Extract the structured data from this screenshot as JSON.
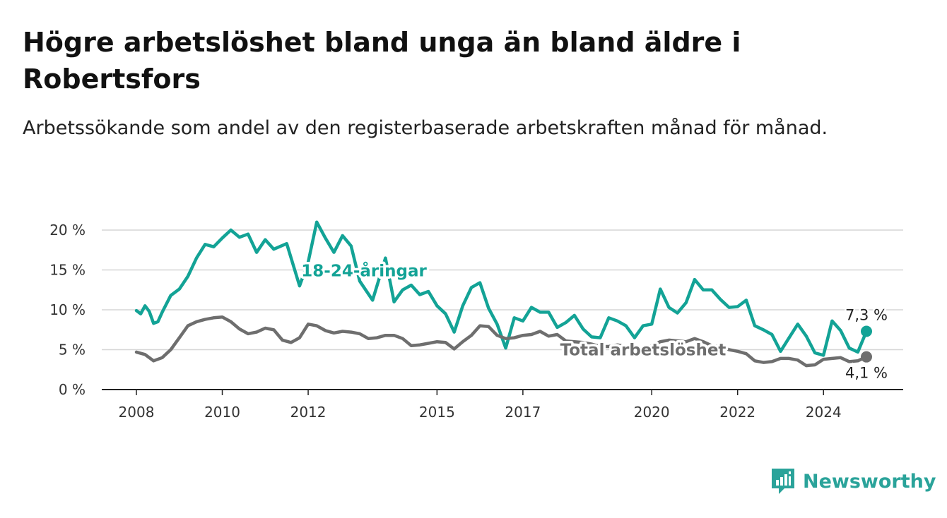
{
  "header": {
    "title": "Högre arbetslöshet bland unga än bland äldre i Robertsfors",
    "subtitle": "Arbetssökande som andel av den registerbaserade arbetskraften månad för månad."
  },
  "brand": {
    "name": "Newsworthy",
    "icon": "bar-chart-logo-icon",
    "color": "#2aa39a"
  },
  "chart_data": {
    "type": "line",
    "xlim": [
      2008,
      2025.6
    ],
    "ylim": [
      0,
      20
    ],
    "y_ticks": [
      0,
      5,
      10,
      15,
      20
    ],
    "y_tick_labels": [
      "0 %",
      "5 %",
      "10 %",
      "15 %",
      "20 %"
    ],
    "x_ticks": [
      2008,
      2010,
      2012,
      2015,
      2017,
      2020,
      2022,
      2024
    ],
    "x_tick_labels": [
      "2008",
      "2010",
      "2012",
      "2015",
      "2017",
      "2020",
      "2022",
      "2024"
    ],
    "grid": true,
    "series": [
      {
        "name": "18-24-åringar",
        "color": "#13a396",
        "end_label": "7,3 %",
        "x": [
          2008.0,
          2008.1,
          2008.2,
          2008.3,
          2008.4,
          2008.5,
          2008.6,
          2008.8,
          2009.0,
          2009.2,
          2009.4,
          2009.6,
          2009.8,
          2010.0,
          2010.2,
          2010.4,
          2010.6,
          2010.8,
          2011.0,
          2011.2,
          2011.5,
          2011.8,
          2012.0,
          2012.2,
          2012.4,
          2012.6,
          2012.8,
          2013.0,
          2013.2,
          2013.5,
          2013.8,
          2014.0,
          2014.2,
          2014.4,
          2014.6,
          2014.8,
          2015.0,
          2015.2,
          2015.4,
          2015.6,
          2015.8,
          2016.0,
          2016.2,
          2016.4,
          2016.6,
          2016.8,
          2017.0,
          2017.2,
          2017.4,
          2017.6,
          2017.8,
          2018.0,
          2018.2,
          2018.4,
          2018.6,
          2018.8,
          2019.0,
          2019.2,
          2019.4,
          2019.6,
          2019.8,
          2020.0,
          2020.2,
          2020.4,
          2020.6,
          2020.8,
          2021.0,
          2021.2,
          2021.4,
          2021.6,
          2021.8,
          2022.0,
          2022.2,
          2022.4,
          2022.6,
          2022.8,
          2023.0,
          2023.2,
          2023.4,
          2023.6,
          2023.8,
          2024.0,
          2024.2,
          2024.4,
          2024.6,
          2024.8,
          2025.0
        ],
        "y": [
          9.9,
          9.5,
          10.5,
          9.8,
          8.3,
          8.5,
          9.7,
          11.8,
          12.6,
          14.2,
          16.5,
          18.2,
          17.9,
          19.0,
          20.0,
          19.1,
          19.5,
          17.2,
          18.8,
          17.6,
          18.3,
          13.0,
          16.0,
          21.0,
          19.0,
          17.2,
          19.3,
          18.0,
          13.6,
          11.2,
          16.5,
          11.0,
          12.5,
          13.1,
          11.9,
          12.3,
          10.5,
          9.5,
          7.2,
          10.5,
          12.8,
          13.4,
          10.2,
          8.2,
          5.2,
          9.0,
          8.6,
          10.3,
          9.7,
          9.7,
          7.8,
          8.4,
          9.3,
          7.6,
          6.6,
          6.5,
          9.0,
          8.6,
          8.0,
          6.5,
          8.0,
          8.2,
          12.6,
          10.3,
          9.6,
          10.9,
          13.8,
          12.5,
          12.5,
          11.3,
          10.3,
          10.4,
          11.2,
          8.0,
          7.5,
          6.9,
          4.8,
          6.5,
          8.2,
          6.7,
          4.6,
          4.3,
          8.6,
          7.4,
          5.2,
          4.7,
          7.3
        ]
      },
      {
        "name": "Total arbetslöshet",
        "color": "#6e6e6e",
        "end_label": "4,1 %",
        "x": [
          2008.0,
          2008.2,
          2008.4,
          2008.6,
          2008.8,
          2009.0,
          2009.2,
          2009.4,
          2009.6,
          2009.8,
          2010.0,
          2010.2,
          2010.4,
          2010.6,
          2010.8,
          2011.0,
          2011.2,
          2011.4,
          2011.6,
          2011.8,
          2012.0,
          2012.2,
          2012.4,
          2012.6,
          2012.8,
          2013.0,
          2013.2,
          2013.4,
          2013.6,
          2013.8,
          2014.0,
          2014.2,
          2014.4,
          2014.6,
          2014.8,
          2015.0,
          2015.2,
          2015.4,
          2015.6,
          2015.8,
          2016.0,
          2016.2,
          2016.4,
          2016.6,
          2016.8,
          2017.0,
          2017.2,
          2017.4,
          2017.6,
          2017.8,
          2018.0,
          2018.2,
          2018.4,
          2018.6,
          2018.8,
          2019.0,
          2019.2,
          2019.4,
          2019.6,
          2019.8,
          2020.0,
          2020.2,
          2020.4,
          2020.6,
          2020.8,
          2021.0,
          2021.2,
          2021.4,
          2021.6,
          2021.8,
          2022.0,
          2022.2,
          2022.4,
          2022.6,
          2022.8,
          2023.0,
          2023.2,
          2023.4,
          2023.6,
          2023.8,
          2024.0,
          2024.2,
          2024.4,
          2024.6,
          2024.8,
          2025.0
        ],
        "y": [
          4.7,
          4.4,
          3.6,
          4.0,
          5.0,
          6.5,
          8.0,
          8.5,
          8.8,
          9.0,
          9.1,
          8.5,
          7.6,
          7.0,
          7.2,
          7.7,
          7.5,
          6.2,
          5.9,
          6.5,
          8.2,
          8.0,
          7.4,
          7.1,
          7.3,
          7.2,
          7.0,
          6.4,
          6.5,
          6.8,
          6.8,
          6.4,
          5.5,
          5.6,
          5.8,
          6.0,
          5.9,
          5.1,
          6.0,
          6.8,
          8.0,
          7.9,
          6.8,
          6.4,
          6.5,
          6.8,
          6.9,
          7.3,
          6.7,
          6.9,
          6.1,
          6.0,
          5.9,
          5.7,
          5.4,
          5.4,
          5.6,
          5.4,
          5.3,
          5.0,
          5.5,
          6.0,
          6.2,
          6.1,
          6.0,
          6.4,
          6.0,
          5.5,
          5.4,
          5.0,
          4.8,
          4.5,
          3.6,
          3.4,
          3.5,
          3.9,
          3.9,
          3.7,
          3.0,
          3.1,
          3.8,
          3.9,
          4.0,
          3.5,
          3.6,
          4.1
        ]
      }
    ]
  }
}
